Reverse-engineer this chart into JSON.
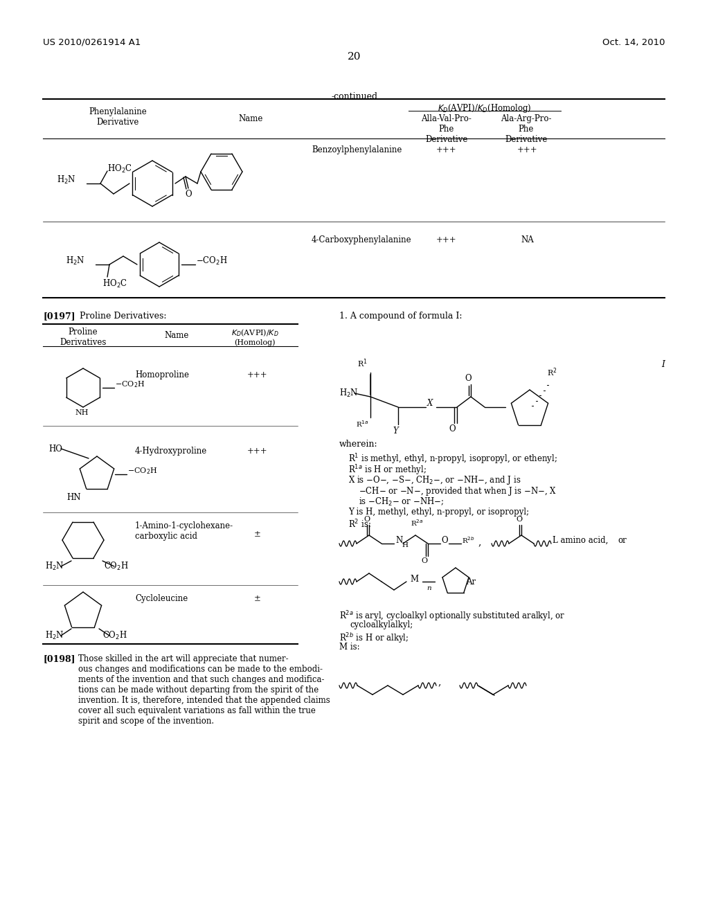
{
  "page_left": "US 2010/0261914 A1",
  "page_right": "Oct. 14, 2010",
  "page_number": "20",
  "bg_color": "#ffffff",
  "text_color": "#000000"
}
